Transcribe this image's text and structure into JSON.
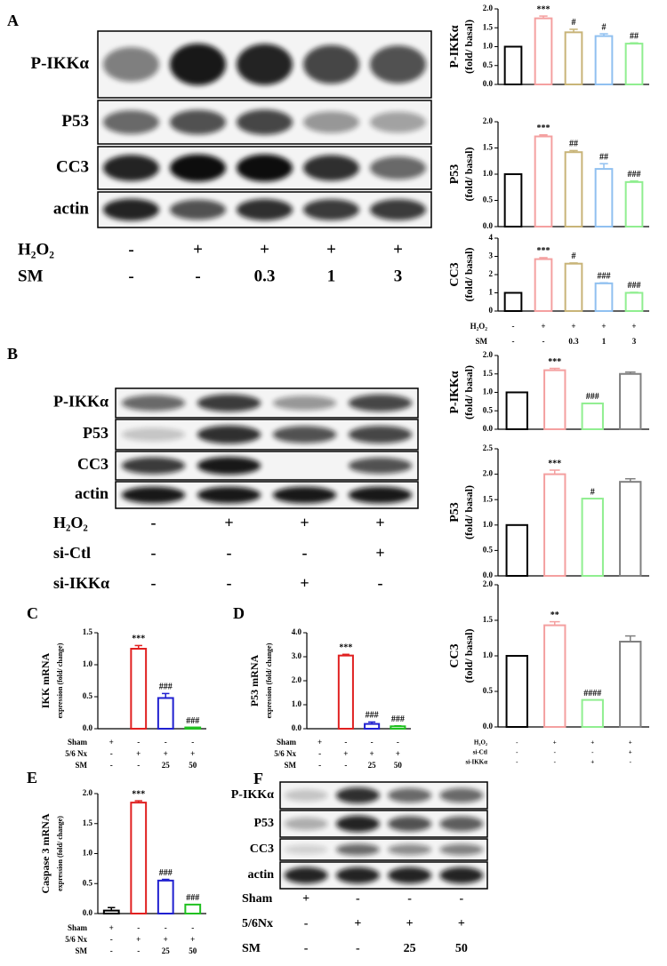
{
  "panels": [
    {
      "letter": "A",
      "blot": {
        "rows": [
          "P-IKKα",
          "P53",
          "CC3",
          "actin"
        ],
        "treatments": [
          {
            "label": "H₂O₂",
            "values": [
              "-",
              "+",
              "+",
              "+",
              "+"
            ]
          },
          {
            "label": "SM",
            "values": [
              "-",
              "-",
              "0.3",
              "1",
              "3"
            ]
          }
        ]
      }
    },
    {
      "letter": "B",
      "blot": {
        "rows": [
          "P-IKKα",
          "P53",
          "CC3",
          "actin"
        ],
        "treatments": [
          {
            "label": "H₂O₂",
            "values": [
              "-",
              "+",
              "+",
              "+"
            ]
          },
          {
            "label": "si-Ctl",
            "values": [
              "-",
              "-",
              "-",
              "+"
            ]
          },
          {
            "label": "si-IKKα",
            "values": [
              "-",
              "-",
              "+",
              "-"
            ]
          }
        ]
      }
    },
    {
      "letter": "C"
    },
    {
      "letter": "D"
    },
    {
      "letter": "E"
    },
    {
      "letter": "F",
      "blot": {
        "rows": [
          "P-IKKα",
          "P53",
          "CC3",
          "actin"
        ],
        "treatments": [
          {
            "label": "Sham",
            "values": [
              "+",
              "-",
              "-",
              "-"
            ]
          },
          {
            "label": "5/6Nx",
            "values": [
              "-",
              "+",
              "+",
              "+"
            ]
          },
          {
            "label": "SM",
            "values": [
              "-",
              "-",
              "25",
              "50"
            ]
          }
        ]
      }
    }
  ],
  "chart_data": [
    {
      "type": "bar",
      "ylabel": [
        "P-IKKα",
        "(fold/ basal)"
      ],
      "values": [
        1.0,
        1.75,
        1.38,
        1.28,
        1.08
      ],
      "errors": [
        0,
        0.06,
        0.08,
        0.06,
        0.02
      ],
      "annotations": [
        null,
        "***",
        "#",
        "#",
        "##"
      ],
      "colors": [
        "#000000",
        "#f4a0a0",
        "#c8b478",
        "#90c0f0",
        "#90ee90"
      ],
      "ylim": [
        0,
        2
      ],
      "yticks": [
        {
          "value": 0,
          "label": "0.0"
        },
        0.5,
        {
          "value": 1,
          "label": "1.0"
        },
        1.5,
        {
          "value": 2,
          "label": "2.0"
        }
      ]
    },
    {
      "type": "bar",
      "ylabel": [
        "P53",
        "(fold/ basal)"
      ],
      "values": [
        1.0,
        1.72,
        1.42,
        1.1,
        0.85
      ],
      "errors": [
        0,
        0.03,
        0.03,
        0.1,
        0.02
      ],
      "annotations": [
        null,
        "***",
        "##",
        "##",
        "###"
      ],
      "colors": [
        "#000000",
        "#f4a0a0",
        "#c8b478",
        "#90c0f0",
        "#90ee90"
      ],
      "ylim": [
        0,
        2
      ],
      "yticks": [
        {
          "value": 0,
          "label": "0.0"
        },
        0.5,
        {
          "value": 1,
          "label": "1.0"
        },
        1.5,
        {
          "value": 2,
          "label": "2.0"
        }
      ]
    },
    {
      "type": "bar",
      "ylabel": [
        "CC3",
        "(fold/ basal)"
      ],
      "values": [
        1.0,
        2.85,
        2.6,
        1.52,
        1.0
      ],
      "errors": [
        0,
        0.08,
        0.04,
        0.03,
        0.03
      ],
      "annotations": [
        null,
        "***",
        "#",
        "###",
        "###"
      ],
      "colors": [
        "#000000",
        "#f4a0a0",
        "#c8b478",
        "#90c0f0",
        "#90ee90"
      ],
      "ylim": [
        0,
        4
      ],
      "yticks": [
        0,
        1,
        2,
        3,
        4
      ],
      "treatments": [
        {
          "label": "H₂O₂",
          "values": [
            "-",
            "+",
            "+",
            "+",
            "+"
          ]
        },
        {
          "label": "SM",
          "values": [
            "-",
            "-",
            "0.3",
            "1",
            "3"
          ]
        }
      ]
    },
    {
      "type": "bar",
      "ylabel": [
        "P-IKKα",
        "(fold/ basal)"
      ],
      "values": [
        1.0,
        1.6,
        0.7,
        1.5
      ],
      "errors": [
        0,
        0.05,
        0,
        0.05
      ],
      "annotations": [
        null,
        "***",
        "###",
        null
      ],
      "colors": [
        "#000000",
        "#f4a0a0",
        "#90ee90",
        "#808080"
      ],
      "ylim": [
        0,
        2
      ],
      "yticks": [
        {
          "value": 0,
          "label": "0.0"
        },
        0.5,
        {
          "value": 1,
          "label": "1.0"
        },
        1.5,
        {
          "value": 2,
          "label": "2.0"
        }
      ]
    },
    {
      "type": "bar",
      "ylabel": [
        "P53",
        "(fold/ basal)"
      ],
      "values": [
        1.0,
        2.0,
        1.52,
        1.85
      ],
      "errors": [
        0,
        0.08,
        0,
        0.06
      ],
      "annotations": [
        null,
        "***",
        "#",
        null
      ],
      "colors": [
        "#000000",
        "#f4a0a0",
        "#90ee90",
        "#808080"
      ],
      "ylim": [
        0,
        2.5
      ],
      "yticks": [
        {
          "value": 0,
          "label": "0.0"
        },
        0.5,
        {
          "value": 1,
          "label": "1.0"
        },
        1.5,
        {
          "value": 2,
          "label": "2.0"
        },
        2.5
      ]
    },
    {
      "type": "bar",
      "ylabel": [
        "CC3",
        "(fold/ basal)"
      ],
      "values": [
        1.0,
        1.43,
        0.38,
        1.2
      ],
      "errors": [
        0,
        0.05,
        0,
        0.08
      ],
      "annotations": [
        null,
        "**",
        "####",
        null
      ],
      "colors": [
        "#000000",
        "#f4a0a0",
        "#90ee90",
        "#808080"
      ],
      "ylim": [
        0,
        2
      ],
      "yticks": [
        {
          "value": 0,
          "label": "0.0"
        },
        0.5,
        {
          "value": 1,
          "label": "1.0"
        },
        1.5,
        {
          "value": 2,
          "label": "2.0"
        }
      ],
      "treatments": [
        {
          "label": "H₂O₂",
          "values": [
            "-",
            "+",
            "+",
            "+"
          ]
        },
        {
          "label": "si-Ctl",
          "values": [
            "-",
            "-",
            "-",
            "+"
          ]
        },
        {
          "label": "si-IKKα",
          "values": [
            "-",
            "-",
            "+",
            "-"
          ]
        }
      ]
    },
    {
      "type": "bar",
      "ylabel": [
        "IKK mRNA",
        "expression (fold/ change)"
      ],
      "values": [
        0,
        1.25,
        0.48,
        0.02
      ],
      "errors": [
        0,
        0.05,
        0.07,
        0
      ],
      "annotations": [
        null,
        "***",
        "###",
        "###"
      ],
      "colors": [
        "#000000",
        "#e02020",
        "#2020d0",
        "#20c020"
      ],
      "ylim": [
        0,
        1.5
      ],
      "yticks": [
        {
          "value": 0,
          "label": "0.0"
        },
        0.5,
        {
          "value": 1,
          "label": "1.0"
        },
        1.5
      ],
      "treatments": [
        {
          "label": "Sham",
          "values": [
            "+",
            "-",
            "-",
            "-"
          ]
        },
        {
          "label": "5/6 Nx",
          "values": [
            "-",
            "+",
            "+",
            "+"
          ]
        },
        {
          "label": "SM",
          "values": [
            "-",
            "-",
            "25",
            "50"
          ]
        }
      ]
    },
    {
      "type": "bar",
      "ylabel": [
        "P53 mRNA",
        "expression (fold/ change)"
      ],
      "values": [
        0,
        3.05,
        0.2,
        0.1
      ],
      "errors": [
        0,
        0.05,
        0.08,
        0.02
      ],
      "annotations": [
        null,
        "***",
        "###",
        "###"
      ],
      "colors": [
        "#000000",
        "#e02020",
        "#2020d0",
        "#20c020"
      ],
      "ylim": [
        0,
        4
      ],
      "yticks": [
        {
          "value": 0,
          "label": "0.0"
        },
        {
          "value": 1,
          "label": "1.0"
        },
        {
          "value": 2,
          "label": "2.0"
        },
        {
          "value": 3,
          "label": "3.0"
        },
        {
          "value": 4,
          "label": "4.0"
        }
      ],
      "treatments": [
        {
          "label": "Sham",
          "values": [
            "+",
            "-",
            "-",
            "-"
          ]
        },
        {
          "label": "5/6 Nx",
          "values": [
            "-",
            "+",
            "+",
            "+"
          ]
        },
        {
          "label": "SM",
          "values": [
            "-",
            "-",
            "25",
            "50"
          ]
        }
      ]
    },
    {
      "type": "bar",
      "ylabel": [
        "Caspase 3 mRNA",
        "expression (fold/ change)"
      ],
      "values": [
        0.05,
        1.85,
        0.55,
        0.15
      ],
      "errors": [
        0.05,
        0.03,
        0.02,
        0
      ],
      "annotations": [
        null,
        "***",
        "###",
        "###"
      ],
      "colors": [
        "#000000",
        "#e02020",
        "#2020d0",
        "#20c020"
      ],
      "ylim": [
        0,
        2
      ],
      "yticks": [
        {
          "value": 0,
          "label": "0.0"
        },
        0.5,
        {
          "value": 1,
          "label": "1.0"
        },
        1.5,
        {
          "value": 2,
          "label": "2.0"
        }
      ],
      "treatments": [
        {
          "label": "Sham",
          "values": [
            "+",
            "-",
            "-",
            "-"
          ]
        },
        {
          "label": "5/6 Nx",
          "values": [
            "-",
            "+",
            "+",
            "+"
          ]
        },
        {
          "label": "SM",
          "values": [
            "-",
            "-",
            "25",
            "50"
          ]
        }
      ]
    }
  ]
}
